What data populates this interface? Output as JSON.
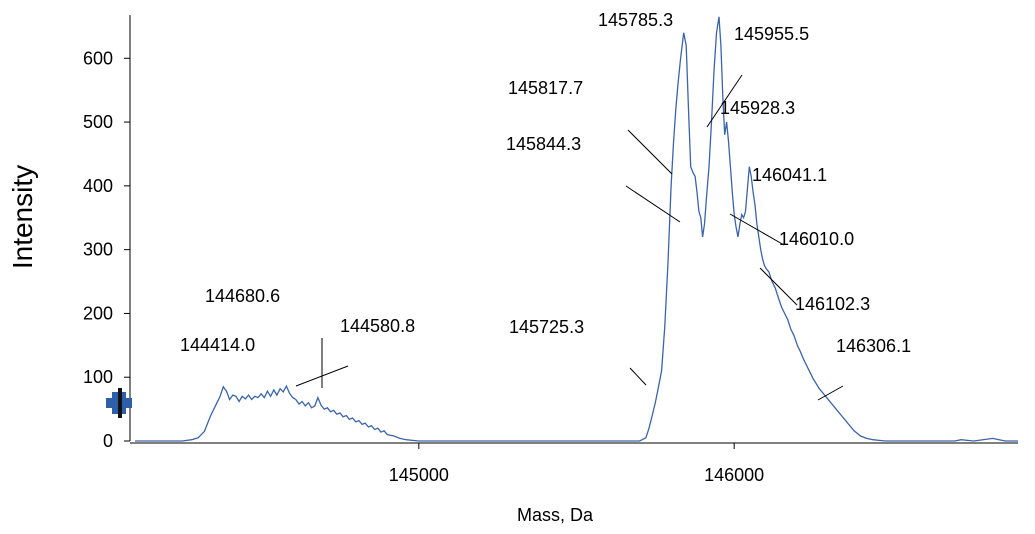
{
  "chart_data": {
    "type": "line",
    "title": "",
    "xlabel": "Mass, Da",
    "ylabel": "Intensity",
    "xlim": [
      144100,
      146900
    ],
    "ylim": [
      0,
      660
    ],
    "x_ticks": [
      145000,
      146000
    ],
    "x_tick_labels": [
      "145000",
      "146000"
    ],
    "y_ticks": [
      0,
      100,
      200,
      300,
      400,
      500,
      600
    ],
    "y_tick_labels": [
      "0",
      "100",
      "200",
      "300",
      "400",
      "500",
      "600"
    ],
    "grid": false,
    "legend": "none",
    "line_color": "#3b64a8",
    "marker_color": "#2f5fa8",
    "series": [
      {
        "values": [
          [
            144100,
            0
          ],
          [
            144250,
            0
          ],
          [
            144280,
            2
          ],
          [
            144300,
            5
          ],
          [
            144320,
            15
          ],
          [
            144340,
            40
          ],
          [
            144360,
            60
          ],
          [
            144370,
            70
          ],
          [
            144380,
            85
          ],
          [
            144390,
            78
          ],
          [
            144400,
            65
          ],
          [
            144410,
            72
          ],
          [
            144420,
            70
          ],
          [
            144430,
            62
          ],
          [
            144440,
            70
          ],
          [
            144450,
            66
          ],
          [
            144460,
            72
          ],
          [
            144470,
            65
          ],
          [
            144480,
            70
          ],
          [
            144490,
            68
          ],
          [
            144500,
            74
          ],
          [
            144510,
            68
          ],
          [
            144520,
            78
          ],
          [
            144530,
            70
          ],
          [
            144540,
            80
          ],
          [
            144550,
            72
          ],
          [
            144560,
            82
          ],
          [
            144570,
            77
          ],
          [
            144580,
            86
          ],
          [
            144590,
            75
          ],
          [
            144600,
            68
          ],
          [
            144610,
            65
          ],
          [
            144620,
            58
          ],
          [
            144630,
            62
          ],
          [
            144640,
            55
          ],
          [
            144650,
            60
          ],
          [
            144660,
            52
          ],
          [
            144670,
            55
          ],
          [
            144680,
            68
          ],
          [
            144690,
            56
          ],
          [
            144700,
            50
          ],
          [
            144710,
            52
          ],
          [
            144720,
            46
          ],
          [
            144730,
            48
          ],
          [
            144740,
            42
          ],
          [
            144750,
            44
          ],
          [
            144760,
            38
          ],
          [
            144770,
            40
          ],
          [
            144780,
            34
          ],
          [
            144790,
            36
          ],
          [
            144800,
            30
          ],
          [
            144810,
            32
          ],
          [
            144820,
            26
          ],
          [
            144830,
            28
          ],
          [
            144840,
            22
          ],
          [
            144850,
            24
          ],
          [
            144860,
            18
          ],
          [
            144870,
            20
          ],
          [
            144880,
            14
          ],
          [
            144890,
            16
          ],
          [
            144900,
            10
          ],
          [
            144920,
            8
          ],
          [
            144940,
            4
          ],
          [
            144960,
            2
          ],
          [
            144980,
            1
          ],
          [
            145000,
            0
          ],
          [
            145400,
            0
          ],
          [
            145600,
            0
          ],
          [
            145700,
            0
          ],
          [
            145720,
            5
          ],
          [
            145730,
            20
          ],
          [
            145740,
            40
          ],
          [
            145750,
            60
          ],
          [
            145760,
            85
          ],
          [
            145770,
            110
          ],
          [
            145780,
            180
          ],
          [
            145790,
            280
          ],
          [
            145800,
            400
          ],
          [
            145808,
            470
          ],
          [
            145815,
            520
          ],
          [
            145822,
            560
          ],
          [
            145830,
            600
          ],
          [
            145840,
            640
          ],
          [
            145848,
            620
          ],
          [
            145855,
            520
          ],
          [
            145862,
            430
          ],
          [
            145870,
            420
          ],
          [
            145876,
            415
          ],
          [
            145882,
            390
          ],
          [
            145888,
            360
          ],
          [
            145894,
            350
          ],
          [
            145900,
            320
          ],
          [
            145906,
            340
          ],
          [
            145912,
            380
          ],
          [
            145920,
            430
          ],
          [
            145928,
            500
          ],
          [
            145936,
            580
          ],
          [
            145944,
            640
          ],
          [
            145952,
            665
          ],
          [
            145958,
            620
          ],
          [
            145964,
            540
          ],
          [
            145970,
            480
          ],
          [
            145976,
            500
          ],
          [
            145982,
            470
          ],
          [
            145988,
            430
          ],
          [
            145994,
            390
          ],
          [
            146000,
            355
          ],
          [
            146006,
            335
          ],
          [
            146012,
            320
          ],
          [
            146018,
            340
          ],
          [
            146024,
            355
          ],
          [
            146030,
            350
          ],
          [
            146036,
            360
          ],
          [
            146042,
            395
          ],
          [
            146048,
            430
          ],
          [
            146054,
            415
          ],
          [
            146060,
            390
          ],
          [
            146066,
            370
          ],
          [
            146072,
            340
          ],
          [
            146078,
            320
          ],
          [
            146084,
            300
          ],
          [
            146090,
            285
          ],
          [
            146096,
            275
          ],
          [
            146102,
            270
          ],
          [
            146110,
            265
          ],
          [
            146120,
            250
          ],
          [
            146130,
            240
          ],
          [
            146140,
            225
          ],
          [
            146150,
            210
          ],
          [
            146160,
            200
          ],
          [
            146170,
            190
          ],
          [
            146180,
            175
          ],
          [
            146190,
            165
          ],
          [
            146200,
            150
          ],
          [
            146210,
            140
          ],
          [
            146220,
            128
          ],
          [
            146230,
            118
          ],
          [
            146240,
            108
          ],
          [
            146250,
            98
          ],
          [
            146260,
            90
          ],
          [
            146270,
            82
          ],
          [
            146280,
            76
          ],
          [
            146290,
            70
          ],
          [
            146300,
            64
          ],
          [
            146310,
            58
          ],
          [
            146320,
            52
          ],
          [
            146330,
            46
          ],
          [
            146340,
            40
          ],
          [
            146350,
            34
          ],
          [
            146360,
            28
          ],
          [
            146370,
            22
          ],
          [
            146380,
            16
          ],
          [
            146390,
            12
          ],
          [
            146400,
            8
          ],
          [
            146420,
            4
          ],
          [
            146440,
            2
          ],
          [
            146460,
            1
          ],
          [
            146480,
            0
          ],
          [
            146700,
            0
          ],
          [
            146720,
            2
          ],
          [
            146740,
            1
          ],
          [
            146760,
            0
          ],
          [
            146820,
            4
          ],
          [
            146840,
            2
          ],
          [
            146860,
            0
          ],
          [
            146900,
            0
          ]
        ]
      }
    ],
    "annotations": [
      {
        "label": "144414.0",
        "x": 144414
      },
      {
        "label": "144580.8",
        "x": 144580.8
      },
      {
        "label": "144680.6",
        "x": 144680.6
      },
      {
        "label": "145725.3",
        "x": 145725.3
      },
      {
        "label": "145785.3",
        "x": 145785.3
      },
      {
        "label": "145817.7",
        "x": 145817.7
      },
      {
        "label": "145844.3",
        "x": 145844.3
      },
      {
        "label": "145928.3",
        "x": 145928.3
      },
      {
        "label": "145955.5",
        "x": 145955.5
      },
      {
        "label": "146010.0",
        "x": 146010.0
      },
      {
        "label": "146041.1",
        "x": 146041.1
      },
      {
        "label": "146102.3",
        "x": 146102.3
      },
      {
        "label": "146306.1",
        "x": 146306.1
      }
    ]
  }
}
